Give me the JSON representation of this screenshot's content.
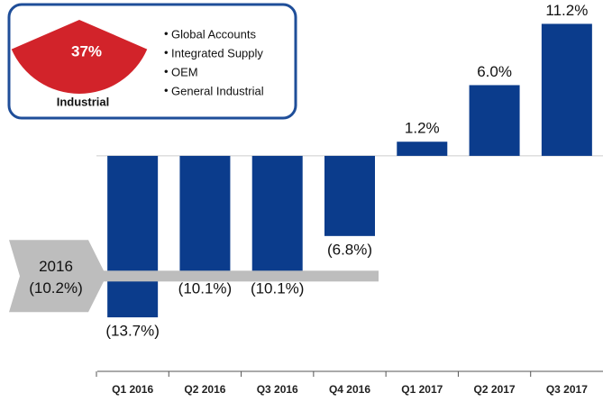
{
  "chart_data": {
    "type": "bar",
    "categories": [
      "Q1 2016",
      "Q2 2016",
      "Q3 2016",
      "Q4 2016",
      "Q1 2017",
      "Q2 2017",
      "Q3 2017"
    ],
    "values": [
      -13.7,
      -10.1,
      -10.1,
      -6.8,
      1.2,
      6.0,
      11.2
    ],
    "value_labels": [
      "(13.7%)",
      "(10.1%)",
      "(10.1%)",
      "(6.8%)",
      "1.2%",
      "6.0%",
      "11.2%"
    ],
    "color": "#0b3c8c",
    "ylim": [
      -14,
      12
    ],
    "reference": {
      "label": "2016",
      "value": -10.2,
      "value_label": "(10.2%)",
      "color": "#bdbdbd"
    },
    "inset": {
      "percent": 37,
      "percent_label": "37%",
      "label": "Industrial",
      "color": "#d2232a",
      "items": [
        "Global Accounts",
        "Integrated Supply",
        "OEM",
        "General Industrial"
      ]
    }
  }
}
